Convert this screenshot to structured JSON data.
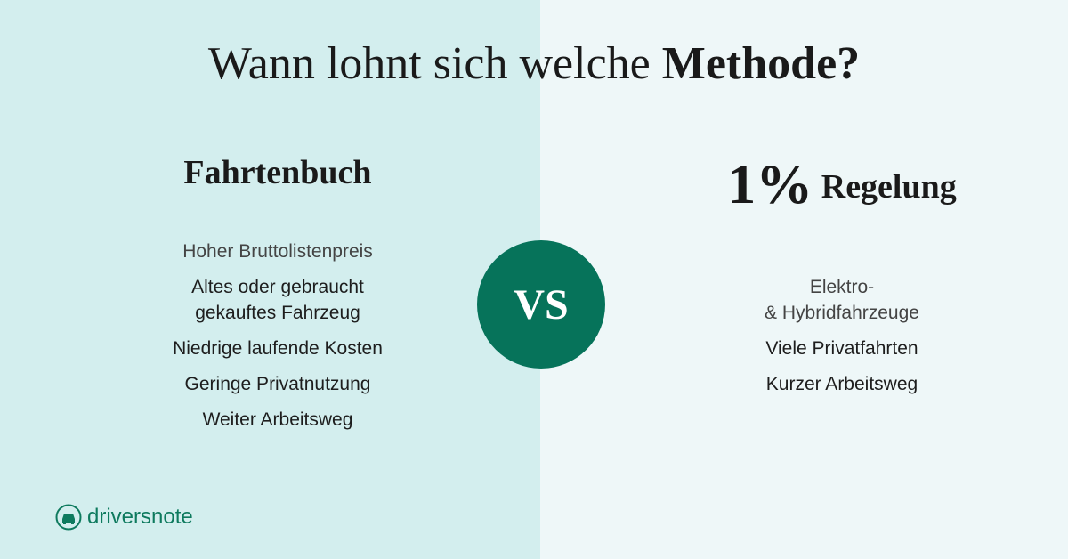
{
  "header": {
    "title_regular": "Wann lohnt sich welche",
    "title_bold": "Methode?"
  },
  "left": {
    "heading": "Fahrtenbuch",
    "items": [
      [
        "Hoher Bruttolistenpreis"
      ],
      [
        "Altes oder gebraucht",
        "gekauftes Fahrzeug"
      ],
      [
        "Niedrige laufende Kosten"
      ],
      [
        "Geringe Privatnutzung"
      ],
      [
        "Weiter Arbeitsweg"
      ]
    ]
  },
  "right": {
    "heading_symbol": "1%",
    "heading": "Regelung",
    "items": [
      [
        "Elektro-",
        "& Hybridfahrzeuge"
      ],
      [
        "Viele Privatfahrten"
      ],
      [
        "Kurzer Arbeitsweg"
      ]
    ]
  },
  "badge": "VS",
  "logo": "driversnote"
}
